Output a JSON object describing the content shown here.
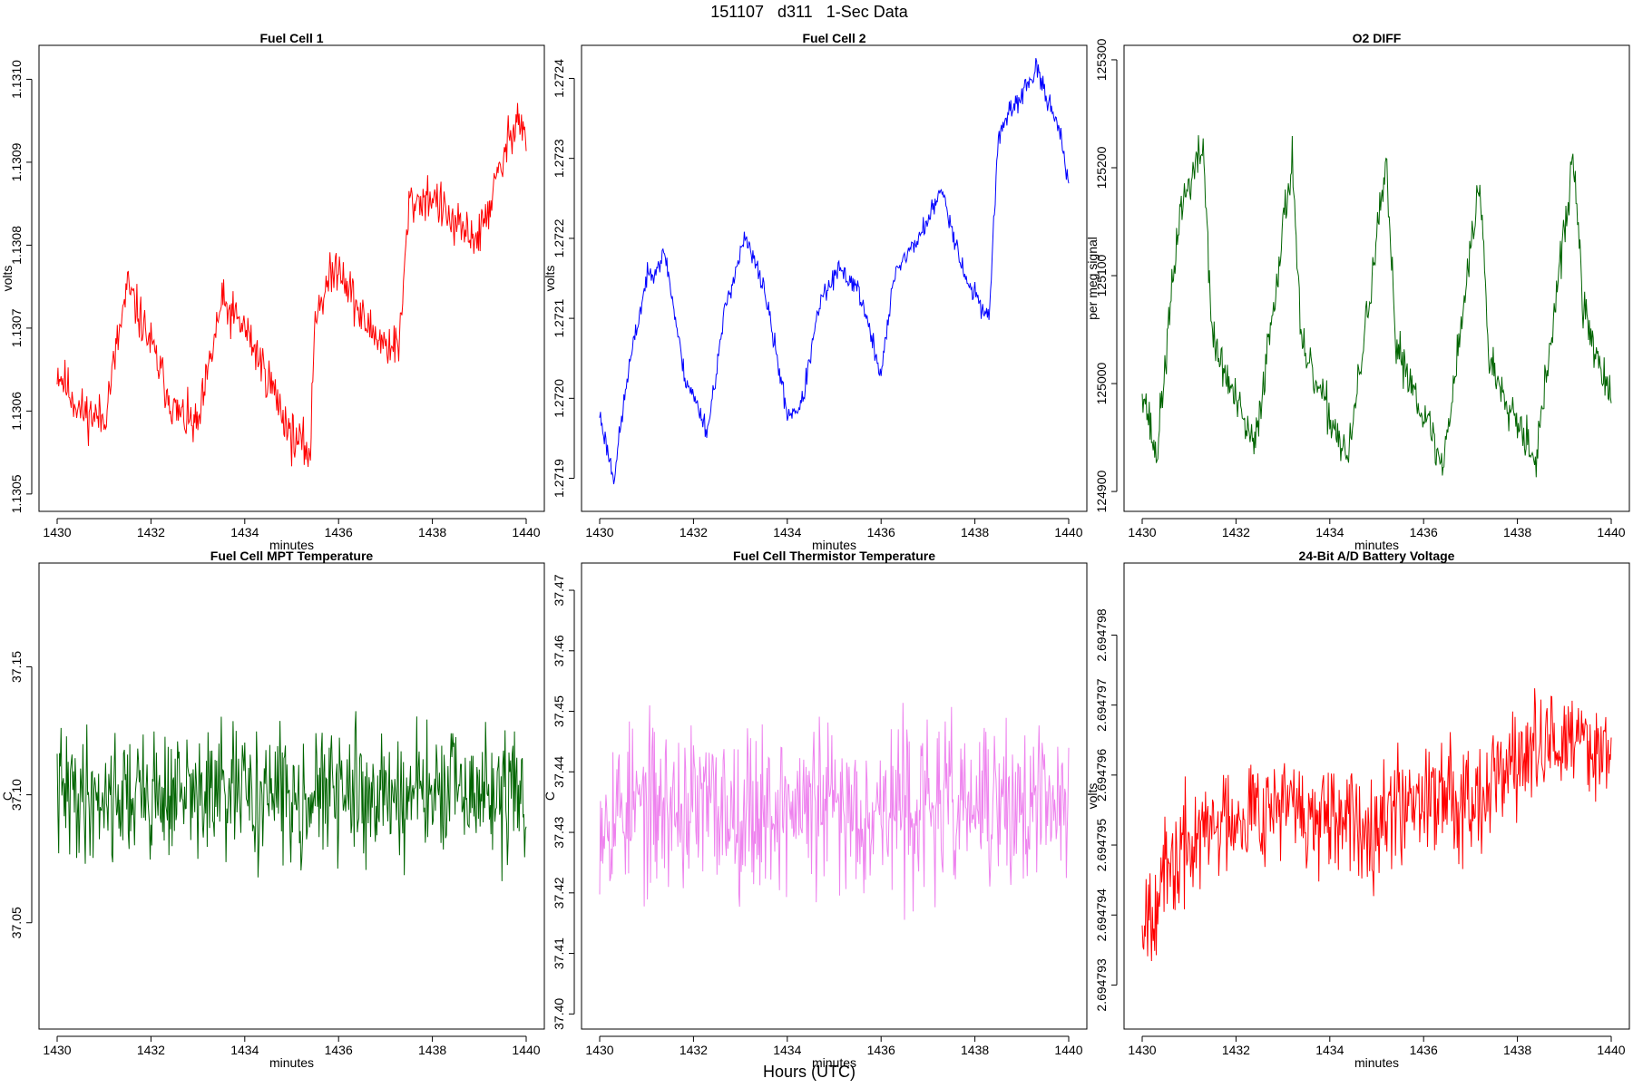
{
  "figure": {
    "title": "151107   d311   1-Sec Data",
    "bottom_label": "Hours (UTC)"
  },
  "chart_data": [
    {
      "type": "line",
      "title": "Fuel Cell 1",
      "xlabel": "minutes",
      "ylabel": "volts",
      "color": "#ff0000",
      "xlim": [
        1430,
        1440
      ],
      "ylim": [
        1.13049,
        1.13103
      ],
      "xticks": [
        1430,
        1432,
        1434,
        1436,
        1438,
        1440
      ],
      "xtick_labels": [
        "1430",
        "1432",
        "1434",
        "1436",
        "1438",
        "1440"
      ],
      "yticks": [
        1.1305,
        1.1306,
        1.1307,
        1.1308,
        1.1309,
        1.131
      ],
      "ytick_labels": [
        "1.1305",
        "1.1306",
        "1.1307",
        "1.1308",
        "1.1309",
        "1.1310"
      ],
      "series": [
        {
          "x": [
            1430,
            1430.5,
            1431,
            1431.5,
            1432,
            1432.5,
            1433,
            1433.5,
            1434,
            1434.5,
            1435,
            1435.4,
            1435.5,
            1436,
            1436.5,
            1437,
            1437.3,
            1437.5,
            1438,
            1438.5,
            1439,
            1439.5,
            1439.8,
            1440
          ],
          "y": [
            1.13065,
            1.1306,
            1.13059,
            1.13075,
            1.13068,
            1.1306,
            1.13058,
            1.13073,
            1.1307,
            1.13064,
            1.13057,
            1.13055,
            1.13072,
            1.13078,
            1.13071,
            1.13068,
            1.13068,
            1.13085,
            1.13086,
            1.13082,
            1.13081,
            1.1309,
            1.13096,
            1.13093
          ]
        }
      ],
      "noise": 2.5e-05,
      "seed": 11
    },
    {
      "type": "line",
      "title": "Fuel Cell 2",
      "xlabel": "minutes",
      "ylabel": "volts",
      "color": "#0000ff",
      "xlim": [
        1430,
        1440
      ],
      "ylim": [
        1.27187,
        1.27243
      ],
      "xticks": [
        1430,
        1432,
        1434,
        1436,
        1438,
        1440
      ],
      "xtick_labels": [
        "1430",
        "1432",
        "1434",
        "1436",
        "1438",
        "1440"
      ],
      "yticks": [
        1.2719,
        1.272,
        1.2721,
        1.2722,
        1.2723,
        1.2724
      ],
      "ytick_labels": [
        "1.2719",
        "1.2720",
        "1.2721",
        "1.2722",
        "1.2723",
        "1.2724"
      ],
      "series": [
        {
          "x": [
            1430,
            1430.3,
            1430.6,
            1431,
            1431.4,
            1431.8,
            1432.3,
            1432.7,
            1433.1,
            1433.5,
            1434,
            1434.3,
            1434.7,
            1435.1,
            1435.5,
            1436,
            1436.3,
            1436.8,
            1437.3,
            1437.8,
            1438.3,
            1438.5,
            1439,
            1439.3,
            1439.8,
            1440
          ],
          "y": [
            1.27198,
            1.2719,
            1.27203,
            1.27215,
            1.27218,
            1.27203,
            1.27196,
            1.27212,
            1.2722,
            1.27214,
            1.27198,
            1.27199,
            1.27212,
            1.27216,
            1.27214,
            1.27203,
            1.27216,
            1.2722,
            1.27226,
            1.27215,
            1.2721,
            1.27233,
            1.27238,
            1.27241,
            1.27234,
            1.27226
          ]
        }
      ],
      "noise": 1.2e-05,
      "seed": 23
    },
    {
      "type": "line",
      "title": "O2 DIFF",
      "xlabel": "minutes",
      "ylabel": "per meg signal",
      "color": "#006400",
      "xlim": [
        1430,
        1440
      ],
      "ylim": [
        124890,
        125305
      ],
      "xticks": [
        1430,
        1432,
        1434,
        1436,
        1438,
        1440
      ],
      "xtick_labels": [
        "1430",
        "1432",
        "1434",
        "1436",
        "1438",
        "1440"
      ],
      "yticks": [
        124900,
        125000,
        125100,
        125200,
        125300
      ],
      "ytick_labels": [
        "124900",
        "125000",
        "125100",
        "125200",
        "125300"
      ],
      "series": [
        {
          "x": [
            1430,
            1430.3,
            1430.8,
            1431.3,
            1431.5,
            1432.2,
            1432.4,
            1433.2,
            1433.4,
            1434.2,
            1434.4,
            1435.2,
            1435.4,
            1436.2,
            1436.4,
            1437.2,
            1437.4,
            1438.2,
            1438.4,
            1439.2,
            1439.4,
            1440
          ],
          "y": [
            125000,
            124930,
            125160,
            125220,
            125040,
            124960,
            124940,
            125210,
            125030,
            124950,
            124930,
            125200,
            125040,
            124950,
            124920,
            125190,
            125020,
            124950,
            124930,
            125210,
            125070,
            124980
          ]
        }
      ],
      "noise": 18,
      "seed": 37
    },
    {
      "type": "line",
      "title": "Fuel Cell MPT Temperature",
      "xlabel": "minutes",
      "ylabel": "C",
      "color": "#006400",
      "xlim": [
        1430,
        1440
      ],
      "ylim": [
        37.012,
        37.187
      ],
      "xticks": [
        1430,
        1432,
        1434,
        1436,
        1438,
        1440
      ],
      "xtick_labels": [
        "1430",
        "1432",
        "1434",
        "1436",
        "1438",
        "1440"
      ],
      "yticks": [
        37.05,
        37.1,
        37.15
      ],
      "ytick_labels": [
        "37.05",
        "37.10",
        "37.15"
      ],
      "series": [
        {
          "x": [
            1430,
            1440
          ],
          "y": [
            37.1,
            37.1
          ]
        }
      ],
      "noise": 0.022,
      "seed": 41
    },
    {
      "type": "line",
      "title": "Fuel Cell Thermistor Temperature",
      "xlabel": "minutes",
      "ylabel": "C",
      "color": "#ee82ee",
      "xlim": [
        1430,
        1440
      ],
      "ylim": [
        37.399,
        37.473
      ],
      "xticks": [
        1430,
        1432,
        1434,
        1436,
        1438,
        1440
      ],
      "xtick_labels": [
        "1430",
        "1432",
        "1434",
        "1436",
        "1438",
        "1440"
      ],
      "yticks": [
        37.4,
        37.41,
        37.42,
        37.43,
        37.44,
        37.45,
        37.46,
        37.47
      ],
      "ytick_labels": [
        "37.40",
        "37.41",
        "37.42",
        "37.43",
        "37.44",
        "37.45",
        "37.46",
        "37.47"
      ],
      "series": [
        {
          "x": [
            1430,
            1440
          ],
          "y": [
            37.434,
            37.434
          ]
        }
      ],
      "noise": 0.012,
      "seed": 53
    },
    {
      "type": "line",
      "title": "24-Bit A/D Battery Voltage",
      "xlabel": "minutes",
      "ylabel": "volts",
      "color": "#ff0000",
      "xlim": [
        1430,
        1440
      ],
      "ylim": [
        2.6947925,
        2.6947989
      ],
      "xticks": [
        1430,
        1432,
        1434,
        1436,
        1438,
        1440
      ],
      "xtick_labels": [
        "1430",
        "1432",
        "1434",
        "1436",
        "1438",
        "1440"
      ],
      "yticks": [
        2.694793,
        2.694794,
        2.694795,
        2.694796,
        2.694797,
        2.694798
      ],
      "ytick_labels": [
        "2.694793",
        "2.694794",
        "2.694795",
        "2.694796",
        "2.694797",
        "2.694798"
      ],
      "series": [
        {
          "x": [
            1430,
            1430.5,
            1431,
            1432,
            1433,
            1434,
            1435,
            1436,
            1437,
            1438,
            1439,
            1440
          ],
          "y": [
            2.694794,
            2.6947945,
            2.694795,
            2.6947955,
            2.6947956,
            2.6947952,
            2.6947954,
            2.6947958,
            2.6947957,
            2.6947962,
            2.6947965,
            2.6947964
          ]
        }
      ],
      "noise": 7e-07,
      "seed": 67
    }
  ]
}
